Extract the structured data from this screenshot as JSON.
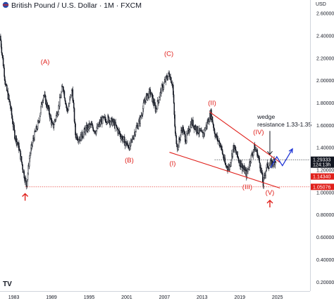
{
  "header": {
    "title": "British Pound / U.S. Dollar · 1M · FXCM",
    "currency": "USD",
    "logo": "TV"
  },
  "chart_data": {
    "type": "candlestick",
    "title": "British Pound / U.S. Dollar · 1M · FXCM",
    "x_ticks": [
      "1983",
      "1989",
      "1995",
      "2001",
      "2007",
      "2013",
      "2019",
      "2025"
    ],
    "x_tick_years": [
      1983,
      1989,
      1995,
      2001,
      2007,
      2013,
      2019,
      2025
    ],
    "x_range": [
      1980.8,
      2030.2
    ],
    "y_ticks": [
      "0.20000",
      "0.40000",
      "0.60000",
      "0.80000",
      "1.00000",
      "1.20000",
      "1.40000",
      "1.60000",
      "1.80000",
      "2.00000",
      "2.20000",
      "2.40000",
      "2.60000"
    ],
    "y_range": [
      0.12,
      2.72
    ],
    "price_path": [
      [
        1980.9,
        2.4
      ],
      [
        1981.3,
        2.2
      ],
      [
        1981.8,
        1.95
      ],
      [
        1982.5,
        1.78
      ],
      [
        1983.2,
        1.52
      ],
      [
        1983.9,
        1.4
      ],
      [
        1984.5,
        1.22
      ],
      [
        1985.1,
        1.06
      ],
      [
        1985.6,
        1.32
      ],
      [
        1986.2,
        1.48
      ],
      [
        1987.0,
        1.62
      ],
      [
        1987.8,
        1.88
      ],
      [
        1988.6,
        1.74
      ],
      [
        1989.3,
        1.58
      ],
      [
        1990.2,
        1.76
      ],
      [
        1990.9,
        1.96
      ],
      [
        1991.6,
        1.72
      ],
      [
        1992.4,
        1.92
      ],
      [
        1992.9,
        1.52
      ],
      [
        1993.6,
        1.48
      ],
      [
        1994.5,
        1.56
      ],
      [
        1995.3,
        1.6
      ],
      [
        1996.2,
        1.55
      ],
      [
        1997.0,
        1.64
      ],
      [
        1998.0,
        1.66
      ],
      [
        1999.0,
        1.62
      ],
      [
        2000.0,
        1.52
      ],
      [
        2001.0,
        1.43
      ],
      [
        2001.6,
        1.41
      ],
      [
        2002.4,
        1.55
      ],
      [
        2003.2,
        1.65
      ],
      [
        2004.0,
        1.83
      ],
      [
        2004.8,
        1.9
      ],
      [
        2005.7,
        1.74
      ],
      [
        2006.6,
        1.92
      ],
      [
        2007.4,
        2.02
      ],
      [
        2007.9,
        2.06
      ],
      [
        2008.4,
        1.96
      ],
      [
        2008.8,
        1.52
      ],
      [
        2009.2,
        1.4
      ],
      [
        2009.9,
        1.58
      ],
      [
        2010.5,
        1.47
      ],
      [
        2011.4,
        1.63
      ],
      [
        2012.3,
        1.56
      ],
      [
        2013.2,
        1.51
      ],
      [
        2014.5,
        1.71
      ],
      [
        2015.2,
        1.51
      ],
      [
        2016.0,
        1.43
      ],
      [
        2016.8,
        1.24
      ],
      [
        2017.4,
        1.22
      ],
      [
        2018.1,
        1.41
      ],
      [
        2019.0,
        1.28
      ],
      [
        2019.7,
        1.21
      ],
      [
        2020.2,
        1.16
      ],
      [
        2020.8,
        1.3
      ],
      [
        2021.4,
        1.4
      ],
      [
        2021.9,
        1.35
      ],
      [
        2022.5,
        1.2
      ],
      [
        2022.8,
        1.07
      ],
      [
        2023.3,
        1.23
      ],
      [
        2023.9,
        1.25
      ],
      [
        2024.4,
        1.27
      ],
      [
        2024.8,
        1.29
      ]
    ],
    "wave_labels": [
      {
        "text": "(A)",
        "x": 1988.0,
        "y": 2.15
      },
      {
        "text": "(B)",
        "x": 2001.4,
        "y": 1.27
      },
      {
        "text": "(C)",
        "x": 2007.7,
        "y": 2.22
      },
      {
        "text": "(I)",
        "x": 2008.3,
        "y": 1.24
      },
      {
        "text": "(II)",
        "x": 2014.6,
        "y": 1.78
      },
      {
        "text": "(III)",
        "x": 2020.2,
        "y": 1.03
      },
      {
        "text": "(IV)",
        "x": 2022.0,
        "y": 1.52
      },
      {
        "text": "(V)",
        "x": 2023.8,
        "y": 0.98
      }
    ],
    "annotation": {
      "line1": "wedge",
      "line2": "resistance 1.33-1.35",
      "x": 2021.8,
      "y1": 1.66,
      "y2": 1.59
    },
    "wedge_upper": [
      [
        2014.2,
        1.72
      ],
      [
        2025.4,
        1.27
      ]
    ],
    "wedge_lower": [
      [
        2007.8,
        1.36
      ],
      [
        2025.4,
        1.04
      ]
    ],
    "support_line": {
      "price": 1.05076,
      "x_start": 1984.8
    },
    "current_line": {
      "price": 1.29333,
      "x_start": 2015.0
    },
    "down_arrow": {
      "x": 2023.8,
      "from": 1.55,
      "to": 1.34
    },
    "up_arrows": [
      {
        "x": 1984.8,
        "price": 0.99
      },
      {
        "x": 2023.8,
        "price": 0.93
      }
    ],
    "projection": [
      [
        2023.9,
        1.22
      ],
      [
        2024.9,
        1.32
      ],
      [
        2025.8,
        1.24
      ],
      [
        2027.4,
        1.39
      ]
    ],
    "price_badges": [
      {
        "text": "1.29333",
        "sub": "124:13h",
        "price": 1.29333,
        "bg": "#131722",
        "fg": "#ffffff"
      },
      {
        "text": "1.14340",
        "price": 1.1434,
        "bg": "#e0201b",
        "fg": "#ffffff"
      },
      {
        "text": "1.05076",
        "price": 1.05076,
        "bg": "#e0201b",
        "fg": "#ffffff"
      }
    ],
    "colors": {
      "candles": "#131722",
      "wave_labels": "#e0201b",
      "wedge": "#e0201b",
      "support": "#e0201b",
      "projection": "#1f35d6",
      "annotation_arrow": "#131722"
    }
  }
}
